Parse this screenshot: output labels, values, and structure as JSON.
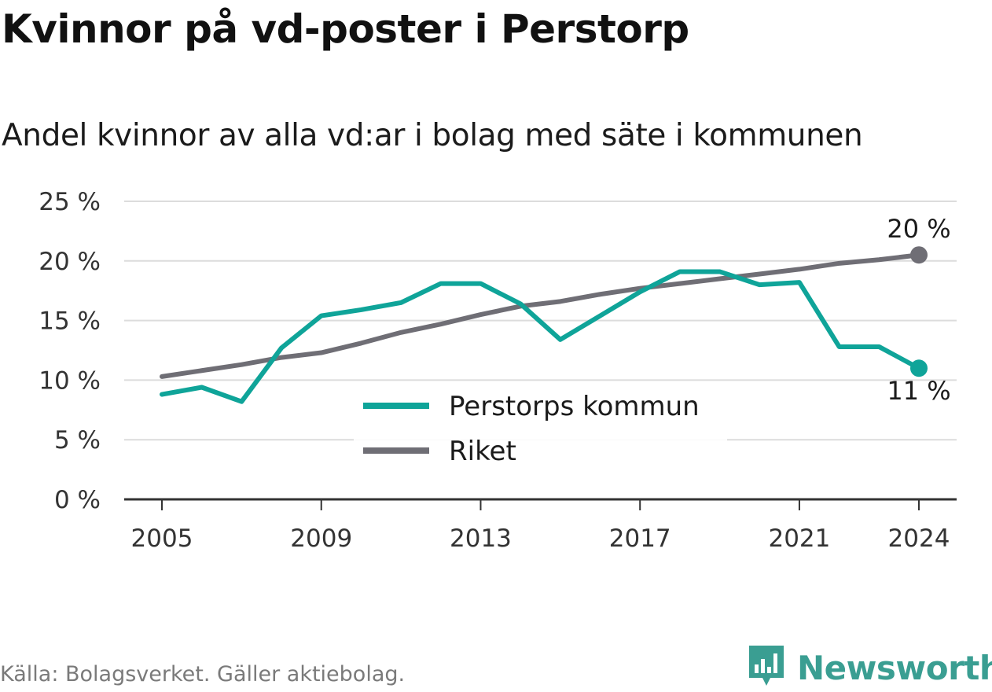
{
  "title": "Kvinnor på vd-poster i Perstorp",
  "subtitle": "Andel kvinnor av alla vd:ar i bolag med säte i kommunen",
  "source": "Källa: Bolagsverket. Gäller aktiebolag.",
  "brand": {
    "name": "Newsworthy",
    "icon": "newsworthy-logo-icon",
    "color": "#3a9e92"
  },
  "chart_data": {
    "type": "line",
    "title": "Kvinnor på vd-poster i Perstorp",
    "subtitle": "Andel kvinnor av alla vd:ar i bolag med säte i kommunen",
    "x": [
      2005,
      2006,
      2007,
      2008,
      2009,
      2010,
      2011,
      2012,
      2013,
      2014,
      2015,
      2016,
      2017,
      2018,
      2019,
      2020,
      2021,
      2022,
      2023,
      2024
    ],
    "x_ticks": [
      2005,
      2009,
      2013,
      2017,
      2021,
      2024
    ],
    "y_ticks": [
      0,
      5,
      10,
      15,
      20,
      25
    ],
    "y_tick_labels": [
      "0 %",
      "5 %",
      "10 %",
      "15 %",
      "20 %",
      "25 %"
    ],
    "ylim": [
      0,
      25
    ],
    "grid": true,
    "legend_position": "center-bottom",
    "series": [
      {
        "name": "Perstorps kommun",
        "color": "#0fa499",
        "values": [
          8.8,
          9.4,
          8.2,
          12.7,
          15.4,
          15.9,
          16.5,
          18.1,
          18.1,
          16.4,
          13.4,
          15.4,
          17.4,
          19.1,
          19.1,
          18.0,
          18.2,
          12.8,
          12.8,
          11.0
        ],
        "end_label": "11 %"
      },
      {
        "name": "Riket",
        "color": "#6f6e75",
        "values": [
          10.3,
          10.8,
          11.3,
          11.9,
          12.3,
          13.1,
          14.0,
          14.7,
          15.5,
          16.2,
          16.6,
          17.2,
          17.7,
          18.1,
          18.5,
          18.9,
          19.3,
          19.8,
          20.1,
          20.5
        ],
        "end_label": "20 %"
      }
    ]
  }
}
